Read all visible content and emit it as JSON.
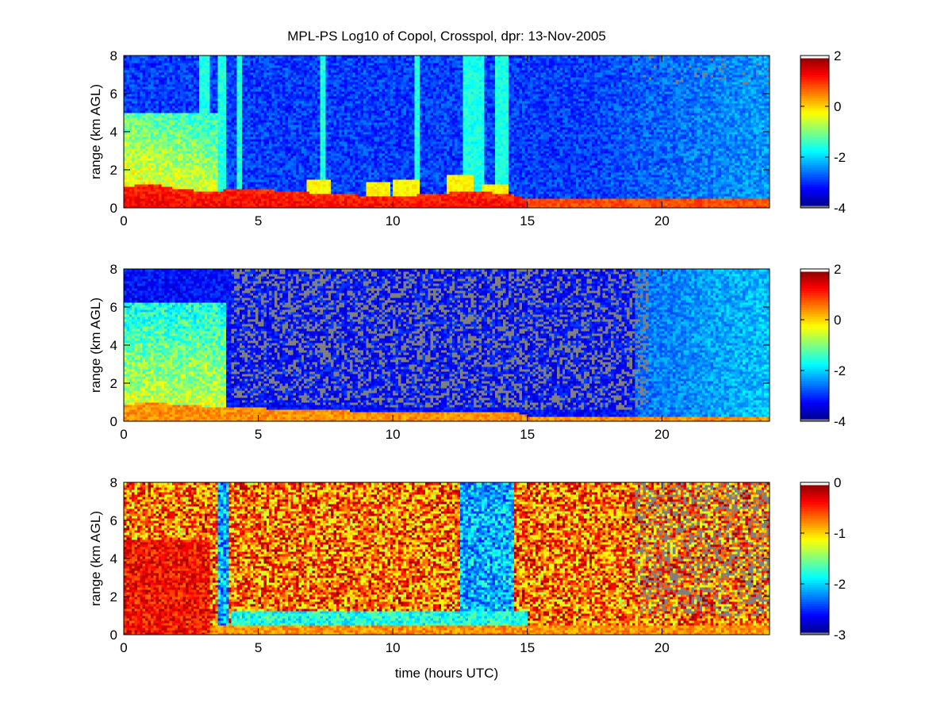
{
  "figure": {
    "title": "MPL-PS Log10 of Copol, Crosspol, dpr: 13-Nov-2005",
    "xlabel": "time (hours UTC)"
  },
  "colors": {
    "missing": "#7f7f7f",
    "colormap": "jet",
    "axes": "#000000"
  },
  "chart_data": [
    {
      "type": "heatmap",
      "panel": "copol",
      "title": "MPL-PS Log10 of Copol, Crosspol, dpr: 13-Nov-2005",
      "xlabel": "",
      "ylabel": "range (km AGL)",
      "xlim": [
        0,
        24
      ],
      "ylim": [
        0,
        8
      ],
      "x_ticks": [
        0,
        5,
        10,
        15,
        20
      ],
      "y_ticks": [
        0,
        2,
        4,
        6,
        8
      ],
      "clim": [
        -4,
        2
      ],
      "colorbar_ticks": [
        2,
        0,
        -2,
        -4
      ],
      "features": {
        "boundary_layer_top_km": [
          [
            0,
            1.1
          ],
          [
            1,
            1.3
          ],
          [
            2,
            1.0
          ],
          [
            3,
            0.9
          ],
          [
            5,
            1.0
          ],
          [
            7,
            0.8
          ],
          [
            10,
            0.6
          ],
          [
            13,
            0.9
          ],
          [
            14.5,
            0.7
          ],
          [
            15,
            0.45
          ],
          [
            24,
            0.4
          ]
        ],
        "clouds_step_tops_km": [
          [
            7.2,
            1.5
          ],
          [
            9.5,
            1.4
          ],
          [
            10.5,
            1.5
          ],
          [
            12.5,
            1.8
          ],
          [
            13.8,
            1.3
          ]
        ],
        "high_signal_columns_hours": [
          [
            2.8,
            3.2
          ],
          [
            3.5,
            3.8
          ],
          [
            4.2,
            4.4
          ],
          [
            7.3,
            7.5
          ],
          [
            10.8,
            11.0
          ],
          [
            12.6,
            13.4
          ],
          [
            13.8,
            14.3
          ]
        ],
        "gray_missing_after_hour": 19.0
      }
    },
    {
      "type": "heatmap",
      "panel": "crosspol",
      "title": "",
      "xlabel": "",
      "ylabel": "range (km AGL)",
      "xlim": [
        0,
        24
      ],
      "ylim": [
        0,
        8
      ],
      "x_ticks": [
        0,
        5,
        10,
        15,
        20
      ],
      "y_ticks": [
        0,
        2,
        4,
        6,
        8
      ],
      "clim": [
        -4,
        2
      ],
      "colorbar_ticks": [
        2,
        0,
        -2,
        -4
      ],
      "features": {
        "boundary_layer_top_km": [
          [
            0,
            0.9
          ],
          [
            1,
            1.0
          ],
          [
            3,
            0.8
          ],
          [
            5,
            0.7
          ],
          [
            10,
            0.5
          ],
          [
            14.5,
            0.5
          ],
          [
            15,
            0.3
          ],
          [
            24,
            0.3
          ]
        ],
        "gray_region_hours": [
          4.0,
          19.5
        ]
      }
    },
    {
      "type": "heatmap",
      "panel": "dpr",
      "title": "",
      "xlabel": "time (hours UTC)",
      "ylabel": "range (km AGL)",
      "xlim": [
        0,
        24
      ],
      "ylim": [
        0,
        8
      ],
      "x_ticks": [
        0,
        5,
        10,
        15,
        20
      ],
      "y_ticks": [
        0,
        2,
        4,
        6,
        8
      ],
      "clim": [
        -3,
        0
      ],
      "colorbar_ticks": [
        0,
        -1,
        -2,
        -3
      ],
      "features": {
        "low_dpr_columns_hours": [
          [
            3.5,
            3.9
          ],
          [
            12.5,
            14.5
          ]
        ],
        "gray_missing_after_hour": 19.0
      }
    }
  ]
}
